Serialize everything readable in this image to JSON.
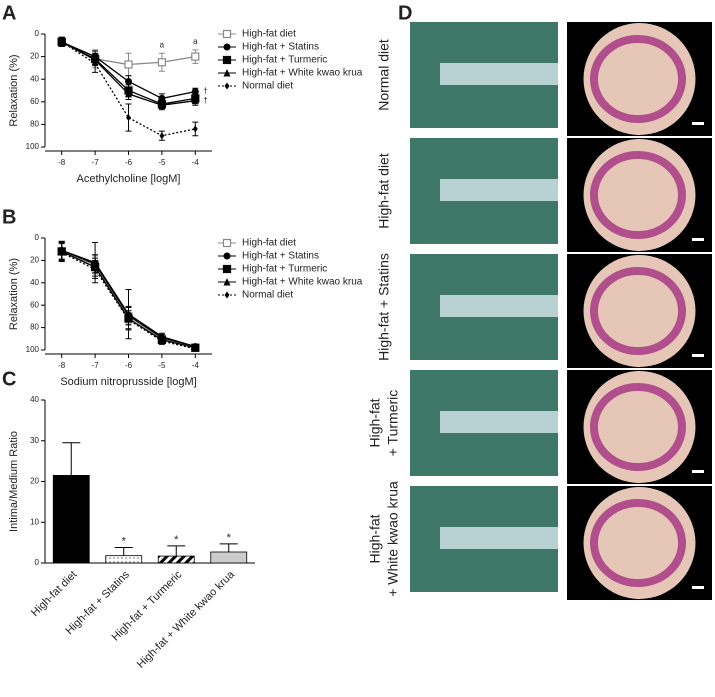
{
  "chart_data": [
    {
      "type": "line",
      "panel": "A",
      "x_label": "Acethylcholine [logM]",
      "y_label": "Relaxation (%)",
      "x": [
        -8,
        -7,
        -6,
        -5,
        -4
      ],
      "xlim": [
        -8.5,
        -3.5
      ],
      "xticks": [
        -8,
        -7,
        -6,
        -5,
        -4
      ],
      "ylim": [
        0,
        100
      ],
      "yticks": [
        0,
        20,
        40,
        60,
        80,
        100
      ],
      "y_inverted": true,
      "series": [
        {
          "name": "High-fat diet",
          "color": "#888888",
          "marker": "square-open",
          "dash": "solid",
          "values": [
            7,
            22,
            27,
            25,
            20
          ],
          "errors": [
            4,
            8,
            10,
            8,
            6
          ]
        },
        {
          "name": "High-fat + Statins",
          "color": "#000000",
          "marker": "circle",
          "dash": "solid",
          "values": [
            7,
            20,
            42,
            57,
            51
          ],
          "errors": [
            4,
            5,
            5,
            4,
            3
          ]
        },
        {
          "name": "High-fat + Turmeric",
          "color": "#000000",
          "marker": "square",
          "dash": "solid",
          "values": [
            7,
            22,
            50,
            62,
            57
          ],
          "errors": [
            4,
            5,
            5,
            4,
            4
          ]
        },
        {
          "name": "High-fat + White kwao krua",
          "color": "#000000",
          "marker": "triangle",
          "dash": "solid",
          "values": [
            7,
            23,
            53,
            63,
            59
          ],
          "errors": [
            4,
            5,
            5,
            4,
            4
          ]
        },
        {
          "name": "Normal diet",
          "color": "#000000",
          "marker": "diamond",
          "dash": "dotted",
          "values": [
            7,
            26,
            74,
            90,
            84
          ],
          "errors": [
            4,
            8,
            12,
            4,
            6
          ]
        }
      ],
      "annotations": [
        {
          "text": "a",
          "series": 0,
          "index": 3,
          "position": "above"
        },
        {
          "text": "a",
          "series": 0,
          "index": 4,
          "position": "above"
        },
        {
          "text": "†",
          "series": 1,
          "index": 4,
          "position": "right"
        },
        {
          "text": "†",
          "series": 3,
          "index": 4,
          "position": "right"
        }
      ]
    },
    {
      "type": "line",
      "panel": "B",
      "x_label": "Sodium nitroprusside [logM]",
      "y_label": "Relaxation (%)",
      "x": [
        -8,
        -7,
        -6,
        -5,
        -4
      ],
      "xlim": [
        -8.5,
        -3.5
      ],
      "xticks": [
        -8,
        -7,
        -6,
        -5,
        -4
      ],
      "ylim": [
        0,
        100
      ],
      "yticks": [
        0,
        20,
        40,
        60,
        80,
        100
      ],
      "y_inverted": true,
      "series": [
        {
          "name": "High-fat diet",
          "color": "#888888",
          "marker": "square-open",
          "dash": "solid",
          "values": [
            12,
            24,
            70,
            90,
            98
          ],
          "errors": [
            8,
            8,
            8,
            3,
            2
          ]
        },
        {
          "name": "High-fat + Statins",
          "color": "#000000",
          "marker": "circle",
          "dash": "solid",
          "values": [
            11,
            23,
            69,
            89,
            97
          ],
          "errors": [
            8,
            8,
            8,
            3,
            2
          ]
        },
        {
          "name": "High-fat + Turmeric",
          "color": "#000000",
          "marker": "square",
          "dash": "solid",
          "values": [
            12,
            26,
            72,
            91,
            98
          ],
          "errors": [
            8,
            8,
            10,
            3,
            2
          ]
        },
        {
          "name": "High-fat + White kwao krua",
          "color": "#000000",
          "marker": "triangle",
          "dash": "solid",
          "values": [
            11,
            22,
            68,
            88,
            97
          ],
          "errors": [
            8,
            18,
            22,
            3,
            2
          ]
        },
        {
          "name": "Normal diet",
          "color": "#000000",
          "marker": "diamond",
          "dash": "dotted",
          "values": [
            13,
            28,
            73,
            92,
            99
          ],
          "errors": [
            8,
            8,
            8,
            3,
            2
          ]
        }
      ]
    },
    {
      "type": "bar",
      "panel": "C",
      "y_label": "Intima/Medium Ratio",
      "categories": [
        "High-fat diet",
        "High-fat + Statins",
        "High-fat + Turmeric",
        "High-fat + White kwao krua"
      ],
      "values": [
        21.5,
        1.8,
        1.7,
        2.7
      ],
      "errors": [
        8,
        2,
        2.5,
        2
      ],
      "fills": [
        "#000000",
        "dots",
        "hatch",
        "#cccccc"
      ],
      "ylim": [
        0,
        40
      ],
      "yticks": [
        0,
        10,
        20,
        30,
        40
      ],
      "annotations": [
        {
          "text": "*",
          "index": 1
        },
        {
          "text": "*",
          "index": 2
        },
        {
          "text": "*",
          "index": 3
        }
      ]
    }
  ],
  "panel_d": {
    "panel": "D",
    "rows": [
      {
        "label_lines": [
          "Normal diet"
        ]
      },
      {
        "label_lines": [
          "High-fat diet"
        ]
      },
      {
        "label_lines": [
          "High-fat + Statins"
        ]
      },
      {
        "label_lines": [
          "High-fat",
          "+ Turmeric"
        ]
      },
      {
        "label_lines": [
          "High-fat",
          "+ White kwao krua"
        ]
      }
    ]
  }
}
